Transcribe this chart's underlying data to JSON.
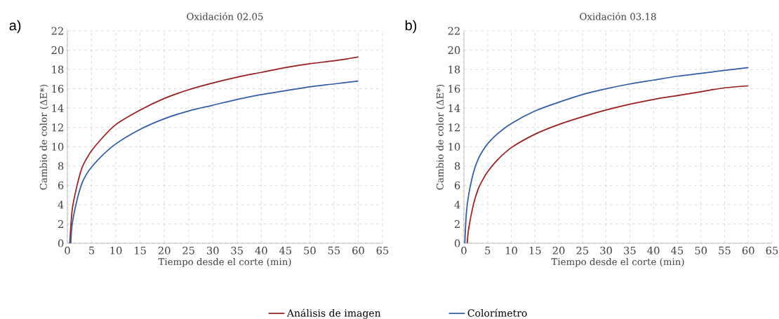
{
  "chart_data": [
    {
      "type": "line",
      "title": "Oxidación 02.05",
      "xlabel": "Tiempo desde el corte (min)",
      "ylabel": "Cambio de color (ΔE*)",
      "annotations": [
        "a)"
      ],
      "xlim": [
        0,
        65
      ],
      "ylim": [
        0,
        22
      ],
      "xticks": [
        0,
        5,
        10,
        15,
        20,
        25,
        30,
        35,
        40,
        45,
        50,
        55,
        60,
        65
      ],
      "yticks": [
        0,
        2,
        4,
        6,
        8,
        10,
        12,
        14,
        16,
        18,
        20,
        22
      ],
      "grid": true,
      "legend": "bottom",
      "series": [
        {
          "name": "Análisis de imagen",
          "color": "#9b1c1c",
          "x": [
            0.5,
            1,
            2,
            3,
            4,
            5,
            7,
            10,
            15,
            20,
            25,
            30,
            35,
            40,
            45,
            50,
            55,
            60
          ],
          "values": [
            0,
            3.5,
            6,
            7.8,
            8.8,
            9.6,
            10.8,
            12.3,
            13.8,
            15,
            15.9,
            16.6,
            17.2,
            17.7,
            18.2,
            18.6,
            18.9,
            19.3
          ]
        },
        {
          "name": "Colorímetro",
          "color": "#2e5ca8",
          "x": [
            0.7,
            1,
            2,
            3,
            4,
            5,
            7,
            10,
            15,
            20,
            25,
            30,
            35,
            40,
            45,
            50,
            55,
            60
          ],
          "values": [
            0,
            2,
            4.5,
            6.2,
            7.2,
            7.9,
            9,
            10.3,
            11.8,
            12.9,
            13.7,
            14.3,
            14.9,
            15.4,
            15.8,
            16.2,
            16.5,
            16.8
          ]
        }
      ]
    },
    {
      "type": "line",
      "title": "Oxidación 03.18",
      "xlabel": "Tiempo desde el corte (min)",
      "ylabel": "Cambio de color (ΔE*)",
      "annotations": [
        "b)"
      ],
      "xlim": [
        0,
        65
      ],
      "ylim": [
        0,
        22
      ],
      "xticks": [
        0,
        5,
        10,
        15,
        20,
        25,
        30,
        35,
        40,
        45,
        50,
        55,
        60,
        65
      ],
      "yticks": [
        0,
        2,
        4,
        6,
        8,
        10,
        12,
        14,
        16,
        18,
        20,
        22
      ],
      "grid": true,
      "series": [
        {
          "color": "#9b1c1c",
          "x": [
            0.7,
            1,
            2,
            3,
            4,
            5,
            7,
            10,
            15,
            20,
            25,
            30,
            35,
            40,
            45,
            50,
            55,
            60
          ],
          "values": [
            0,
            1.5,
            4,
            5.6,
            6.6,
            7.4,
            8.6,
            9.9,
            11.3,
            12.3,
            13.1,
            13.8,
            14.4,
            14.9,
            15.3,
            15.7,
            16.1,
            16.3
          ]
        },
        {
          "color": "#2e5ca8",
          "x": [
            0.2,
            0.5,
            1,
            2,
            3,
            4,
            5,
            7,
            10,
            15,
            20,
            25,
            30,
            35,
            40,
            45,
            50,
            55,
            60
          ],
          "values": [
            0,
            3,
            5,
            7.3,
            8.7,
            9.6,
            10.3,
            11.3,
            12.4,
            13.7,
            14.6,
            15.4,
            16,
            16.5,
            16.9,
            17.3,
            17.6,
            17.9,
            18.2
          ]
        }
      ]
    }
  ]
}
